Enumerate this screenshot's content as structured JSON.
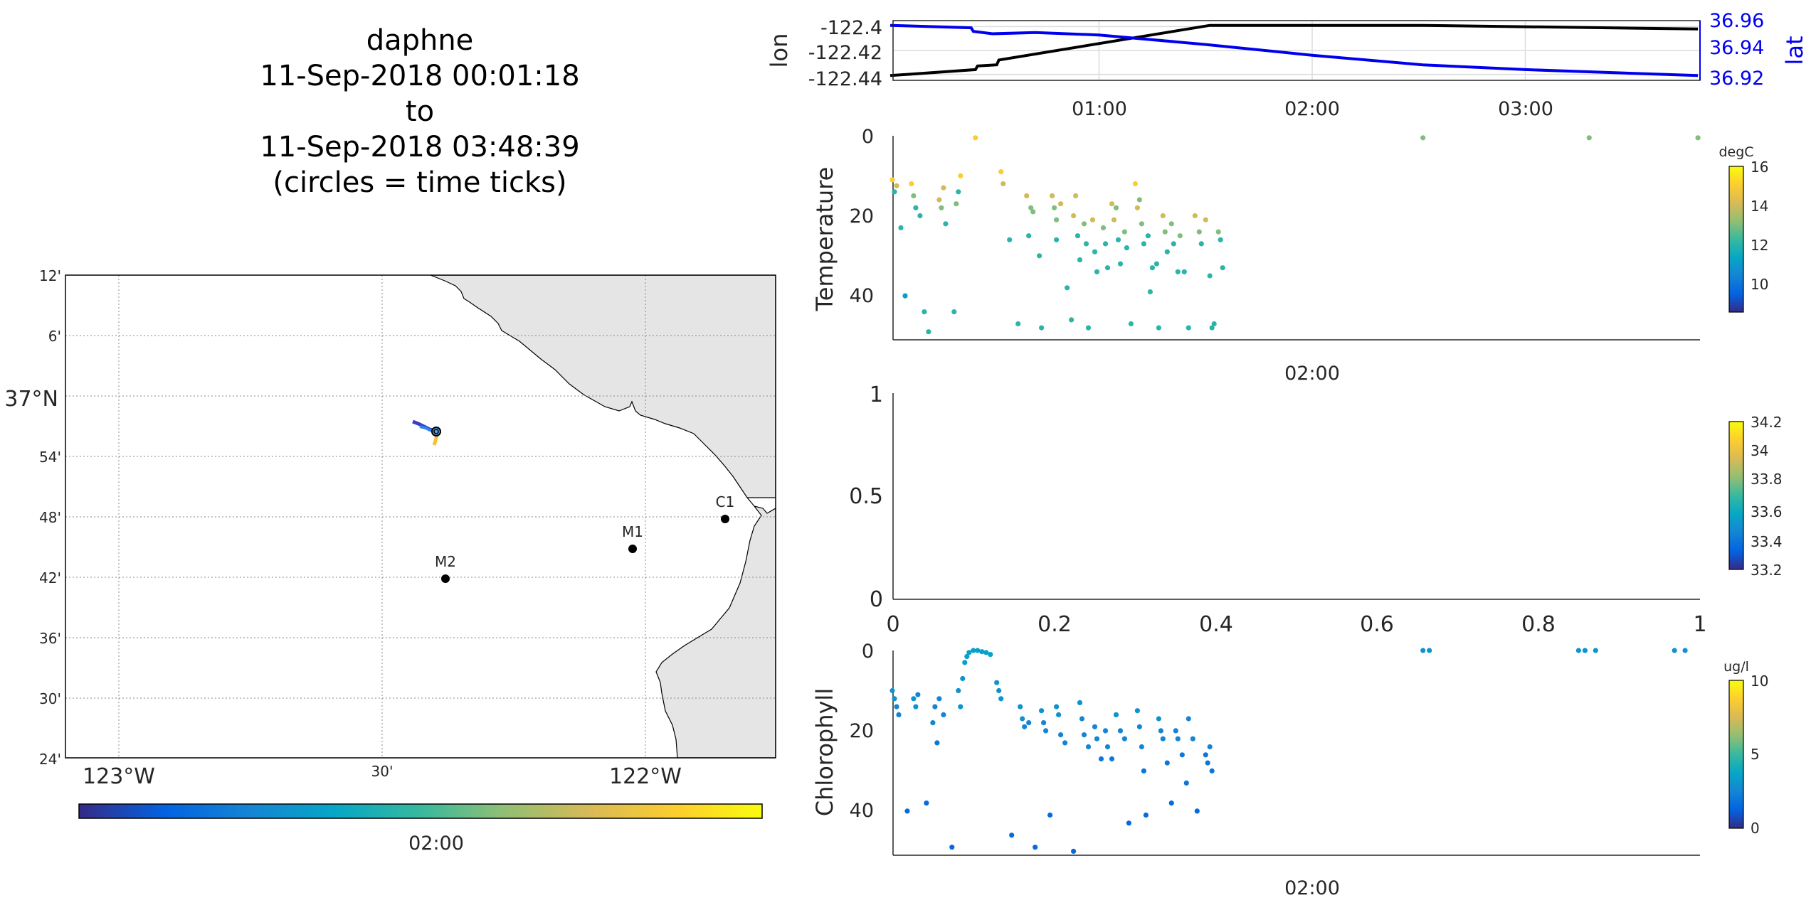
{
  "title": {
    "platform": "daphne",
    "start": "11-Sep-2018 00:01:18",
    "to": "to",
    "end": "11-Sep-2018 03:48:39",
    "note": "(circles = time ticks)"
  },
  "colors": {
    "lon_line": "#000000",
    "lat_line": "#0000ee",
    "land": "#e5e5e5",
    "grid": "#bbbbbb",
    "parula": [
      "#352a87",
      "#0363e1",
      "#1485d4",
      "#06a7c6",
      "#38b99e",
      "#92bf73",
      "#d9ba56",
      "#fcce2e",
      "#f9fb0e"
    ]
  },
  "map": {
    "lat_ticks": [
      "12'",
      "6'",
      "37°N",
      "54'",
      "48'",
      "42'",
      "36'",
      "30'",
      "24'"
    ],
    "lon_ticks": [
      "123°W",
      "30'",
      "122°W"
    ],
    "stations": [
      {
        "name": "C1",
        "lon": -121.85,
        "lat": 36.797
      },
      {
        "name": "M1",
        "lon": -122.03,
        "lat": 36.747
      },
      {
        "name": "M2",
        "lon": -122.39,
        "lat": 36.697
      }
    ],
    "track": {
      "lon": [
        -122.44,
        -122.405
      ],
      "lat": [
        36.96,
        36.92
      ]
    },
    "colorbar_tick": "02:00"
  },
  "chart_data": [
    {
      "type": "line",
      "ylabel_left": "lon",
      "ylabel_right": "lat",
      "x_ticks": [
        "01:00",
        "02:00",
        "03:00"
      ],
      "x_range_hours": [
        0.02,
        3.81
      ],
      "ylim_left": [
        -122.445,
        -122.395
      ],
      "ylim_right": [
        36.915,
        36.965
      ],
      "y_ticks_left": [
        "-122.4",
        "-122.42",
        "-122.44"
      ],
      "y_ticks_right": [
        "36.96",
        "36.94",
        "36.92"
      ],
      "series": [
        {
          "name": "lon",
          "x": [
            0.02,
            0.42,
            0.43,
            0.52,
            0.53,
            1.52,
            2.52,
            3.81
          ],
          "y": [
            -122.441,
            -122.436,
            -122.433,
            -122.432,
            -122.428,
            -122.399,
            -122.399,
            -122.402
          ]
        },
        {
          "name": "lat",
          "x": [
            0.02,
            0.4,
            0.41,
            0.5,
            0.7,
            1.0,
            1.5,
            2.0,
            2.52,
            3.0,
            3.81
          ],
          "y": [
            36.961,
            36.959,
            36.956,
            36.954,
            36.955,
            36.953,
            36.945,
            36.936,
            36.928,
            36.924,
            36.919
          ]
        }
      ]
    },
    {
      "type": "scatter",
      "ylabel": "Temperature",
      "colorbar_label": "degC",
      "colorbar_ticks": [
        "16",
        "14",
        "12",
        "10"
      ],
      "clim": [
        8.5,
        16
      ],
      "x_tick": "02:00",
      "ylim": [
        0,
        51
      ],
      "y_ticks": [
        "0",
        "20",
        "40"
      ],
      "points": [
        [
          0.03,
          11,
          15
        ],
        [
          0.04,
          14,
          12
        ],
        [
          0.05,
          12.5,
          14
        ],
        [
          0.07,
          23,
          12
        ],
        [
          0.09,
          40,
          11
        ],
        [
          0.12,
          12,
          15
        ],
        [
          0.13,
          15,
          13
        ],
        [
          0.14,
          18,
          12
        ],
        [
          0.16,
          20,
          12
        ],
        [
          0.18,
          44,
          12
        ],
        [
          0.2,
          49,
          12
        ],
        [
          0.25,
          16,
          14
        ],
        [
          0.26,
          18,
          13
        ],
        [
          0.27,
          13,
          14
        ],
        [
          0.28,
          22,
          12
        ],
        [
          0.33,
          17,
          13
        ],
        [
          0.34,
          14,
          12
        ],
        [
          0.35,
          10,
          15
        ],
        [
          0.32,
          44,
          12
        ],
        [
          0.42,
          0.5,
          15
        ],
        [
          0.54,
          9,
          15
        ],
        [
          0.55,
          12,
          14
        ],
        [
          0.58,
          26,
          12
        ],
        [
          0.62,
          47,
          12
        ],
        [
          0.66,
          15,
          14
        ],
        [
          0.67,
          25,
          12
        ],
        [
          0.68,
          18,
          13
        ],
        [
          0.69,
          19,
          13
        ],
        [
          0.72,
          30,
          12
        ],
        [
          0.73,
          48,
          12
        ],
        [
          0.78,
          15,
          14
        ],
        [
          0.79,
          18,
          13
        ],
        [
          0.8,
          21,
          13
        ],
        [
          0.8,
          26,
          12
        ],
        [
          0.82,
          17,
          14
        ],
        [
          0.85,
          38,
          12
        ],
        [
          0.87,
          46,
          12
        ],
        [
          0.88,
          20,
          14
        ],
        [
          0.89,
          15,
          14
        ],
        [
          0.9,
          25,
          12
        ],
        [
          0.91,
          31,
          12
        ],
        [
          0.93,
          22,
          13
        ],
        [
          0.94,
          27,
          12
        ],
        [
          0.95,
          48,
          12
        ],
        [
          0.97,
          21,
          14
        ],
        [
          0.98,
          29,
          12
        ],
        [
          0.99,
          34,
          12
        ],
        [
          1.02,
          23,
          13
        ],
        [
          1.03,
          27,
          12
        ],
        [
          1.04,
          33,
          12
        ],
        [
          1.06,
          17,
          14
        ],
        [
          1.07,
          21,
          14
        ],
        [
          1.08,
          18,
          13
        ],
        [
          1.09,
          26,
          12
        ],
        [
          1.1,
          32,
          12
        ],
        [
          1.12,
          24,
          13
        ],
        [
          1.13,
          28,
          12
        ],
        [
          1.15,
          47,
          12
        ],
        [
          1.17,
          12,
          15
        ],
        [
          1.18,
          18,
          14
        ],
        [
          1.19,
          16,
          13
        ],
        [
          1.2,
          22,
          13
        ],
        [
          1.21,
          27,
          12
        ],
        [
          1.23,
          25,
          12
        ],
        [
          1.24,
          39,
          12
        ],
        [
          1.25,
          33,
          12
        ],
        [
          1.27,
          32,
          12
        ],
        [
          1.28,
          48,
          12
        ],
        [
          1.3,
          20,
          14
        ],
        [
          1.31,
          24,
          13
        ],
        [
          1.32,
          29,
          12
        ],
        [
          1.34,
          22,
          13
        ],
        [
          1.35,
          27,
          12
        ],
        [
          1.37,
          34,
          12
        ],
        [
          1.38,
          25,
          13
        ],
        [
          1.4,
          34,
          12
        ],
        [
          1.42,
          48,
          12
        ],
        [
          1.45,
          20,
          14
        ],
        [
          1.47,
          24,
          13
        ],
        [
          1.48,
          27,
          12
        ],
        [
          1.5,
          21,
          14
        ],
        [
          1.52,
          35,
          12
        ],
        [
          1.53,
          48,
          12
        ],
        [
          1.54,
          47,
          12
        ],
        [
          1.56,
          24,
          13
        ],
        [
          1.57,
          26,
          12
        ],
        [
          1.58,
          33,
          12
        ],
        [
          2.52,
          0.5,
          13
        ],
        [
          3.3,
          0.5,
          13
        ],
        [
          3.81,
          0.5,
          13
        ]
      ]
    },
    {
      "type": "scatter",
      "title": "",
      "colorbar_ticks": [
        "34.2",
        "34",
        "33.8",
        "33.6",
        "33.4",
        "33.2"
      ],
      "x_ticks": [
        "0",
        "0.2",
        "0.4",
        "0.6",
        "0.8",
        "1"
      ],
      "y_ticks": [
        "1",
        "0.5",
        "0"
      ],
      "xlim": [
        0,
        1
      ],
      "ylim": [
        0,
        1
      ],
      "points": []
    },
    {
      "type": "scatter",
      "ylabel": "Chlorophyll",
      "colorbar_label": "ug/l",
      "colorbar_ticks": [
        "10",
        "5",
        "0"
      ],
      "clim": [
        0,
        10
      ],
      "x_tick": "02:00",
      "ylim": [
        0,
        51
      ],
      "y_ticks": [
        "0",
        "20",
        "40"
      ],
      "points": [
        [
          0.03,
          10,
          3
        ],
        [
          0.04,
          12,
          3
        ],
        [
          0.05,
          14,
          2.5
        ],
        [
          0.06,
          16,
          2.5
        ],
        [
          0.1,
          40,
          1.5
        ],
        [
          0.13,
          12,
          3
        ],
        [
          0.14,
          14,
          3
        ],
        [
          0.15,
          11,
          2.5
        ],
        [
          0.19,
          38,
          1.5
        ],
        [
          0.22,
          18,
          2.5
        ],
        [
          0.23,
          14,
          2.5
        ],
        [
          0.24,
          23,
          2
        ],
        [
          0.25,
          12,
          2.5
        ],
        [
          0.27,
          16,
          2.5
        ],
        [
          0.31,
          49,
          1.5
        ],
        [
          0.34,
          10,
          3
        ],
        [
          0.35,
          14,
          3
        ],
        [
          0.36,
          7,
          3
        ],
        [
          0.37,
          3,
          3.5
        ],
        [
          0.38,
          1.5,
          3.5
        ],
        [
          0.39,
          0.5,
          3.5
        ],
        [
          0.41,
          0,
          3.5
        ],
        [
          0.43,
          0,
          3.5
        ],
        [
          0.45,
          0.3,
          3.5
        ],
        [
          0.47,
          0.5,
          3.5
        ],
        [
          0.49,
          1,
          3.5
        ],
        [
          0.52,
          8,
          3
        ],
        [
          0.53,
          10,
          3
        ],
        [
          0.54,
          12,
          3
        ],
        [
          0.59,
          46,
          1.5
        ],
        [
          0.63,
          14,
          3
        ],
        [
          0.64,
          17,
          3
        ],
        [
          0.65,
          19,
          2.5
        ],
        [
          0.67,
          18,
          2.5
        ],
        [
          0.7,
          49,
          1.5
        ],
        [
          0.73,
          15,
          3
        ],
        [
          0.74,
          18,
          2.5
        ],
        [
          0.75,
          20,
          2.5
        ],
        [
          0.77,
          41,
          1.5
        ],
        [
          0.8,
          14,
          3
        ],
        [
          0.81,
          16,
          3
        ],
        [
          0.82,
          21,
          2.5
        ],
        [
          0.84,
          23,
          2.5
        ],
        [
          0.88,
          50,
          1.5
        ],
        [
          0.91,
          13,
          3
        ],
        [
          0.92,
          17,
          2.5
        ],
        [
          0.93,
          21,
          2.5
        ],
        [
          0.95,
          24,
          2.5
        ],
        [
          0.98,
          19,
          2.5
        ],
        [
          0.99,
          22,
          2.5
        ],
        [
          1.01,
          27,
          2
        ],
        [
          1.03,
          20,
          2.5
        ],
        [
          1.04,
          24,
          2.5
        ],
        [
          1.06,
          27,
          2
        ],
        [
          1.08,
          16,
          3
        ],
        [
          1.1,
          20,
          2.5
        ],
        [
          1.12,
          22,
          2.5
        ],
        [
          1.14,
          43,
          1.5
        ],
        [
          1.18,
          15,
          3
        ],
        [
          1.19,
          19,
          2.5
        ],
        [
          1.2,
          24,
          2.5
        ],
        [
          1.21,
          30,
          2
        ],
        [
          1.22,
          41,
          1.5
        ],
        [
          1.28,
          17,
          3
        ],
        [
          1.29,
          20,
          2.5
        ],
        [
          1.3,
          22,
          2.5
        ],
        [
          1.32,
          28,
          2
        ],
        [
          1.34,
          38,
          1.5
        ],
        [
          1.36,
          20,
          2.5
        ],
        [
          1.37,
          22,
          2.5
        ],
        [
          1.39,
          26,
          2
        ],
        [
          1.41,
          33,
          2
        ],
        [
          1.42,
          17,
          2.5
        ],
        [
          1.44,
          22,
          2.5
        ],
        [
          1.46,
          40,
          1.5
        ],
        [
          1.5,
          26,
          2
        ],
        [
          1.51,
          28,
          2
        ],
        [
          1.52,
          24,
          2.5
        ],
        [
          1.53,
          30,
          2
        ],
        [
          2.52,
          0,
          3
        ],
        [
          2.55,
          0,
          3
        ],
        [
          3.25,
          0,
          3
        ],
        [
          3.28,
          0,
          3
        ],
        [
          3.33,
          0,
          3
        ],
        [
          3.7,
          0,
          3
        ],
        [
          3.75,
          0,
          3
        ]
      ]
    }
  ]
}
